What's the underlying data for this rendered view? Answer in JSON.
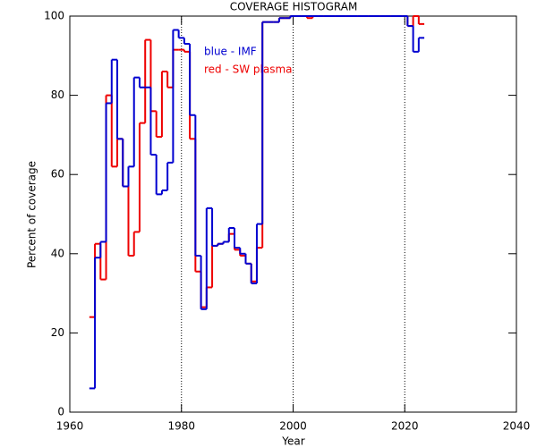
{
  "chart_data": {
    "type": "step",
    "title": "COVERAGE HISTOGRAM",
    "xlabel": "Year",
    "ylabel": "Percent of coverage",
    "annotations": [
      "blue - IMF",
      "red - SW plasma"
    ],
    "x": [
      1964,
      1965,
      1966,
      1967,
      1968,
      1969,
      1970,
      1971,
      1972,
      1973,
      1974,
      1975,
      1976,
      1977,
      1978,
      1979,
      1980,
      1981,
      1982,
      1983,
      1984,
      1985,
      1986,
      1987,
      1988,
      1989,
      1990,
      1991,
      1992,
      1993,
      1994,
      1995,
      1996,
      1997,
      1998,
      1999,
      2000,
      2001,
      2002,
      2003,
      2004,
      2005,
      2006,
      2007,
      2008,
      2009,
      2010,
      2011,
      2012,
      2013,
      2014,
      2015,
      2016,
      2017,
      2018,
      2019,
      2020,
      2021,
      2022,
      2023
    ],
    "series": [
      {
        "color": "#ee0000",
        "values": [
          24,
          42.5,
          33.5,
          80,
          62,
          69,
          57,
          39.5,
          45.5,
          73,
          94,
          76,
          69.5,
          86,
          82,
          91.5,
          91.5,
          91,
          69,
          35.5,
          26.5,
          31.5,
          42,
          42.5,
          43,
          45,
          41,
          39.5,
          37.5,
          33,
          41.5,
          98.5,
          98.5,
          98.5,
          99.5,
          99.5,
          100,
          100,
          100,
          99.5,
          100,
          100,
          100,
          100,
          100,
          100,
          100,
          100,
          100,
          100,
          100,
          100,
          100,
          100,
          100,
          100,
          100,
          97.5,
          100,
          98
        ]
      },
      {
        "color": "#0000d0",
        "values": [
          6,
          39,
          43,
          78,
          89,
          69,
          57,
          62,
          84.5,
          82,
          82,
          65,
          55,
          56,
          63,
          96.5,
          94.5,
          93,
          75,
          39.5,
          26,
          51.5,
          42,
          42.5,
          43,
          46.5,
          41.5,
          40,
          37.5,
          32.5,
          47.5,
          98.5,
          98.5,
          98.5,
          99.5,
          99.5,
          100,
          100,
          100,
          100,
          100,
          100,
          100,
          100,
          100,
          100,
          100,
          100,
          100,
          100,
          100,
          100,
          100,
          100,
          100,
          100,
          100,
          97.5,
          91,
          94.5
        ]
      }
    ],
    "xlim": [
      1960,
      2040
    ],
    "xticks": [
      1960,
      1980,
      2000,
      2020,
      2040
    ],
    "ylim": [
      0,
      100
    ],
    "yticks": [
      0,
      20,
      40,
      60,
      80,
      100
    ],
    "vlines": [
      1980,
      2000,
      2020
    ]
  }
}
